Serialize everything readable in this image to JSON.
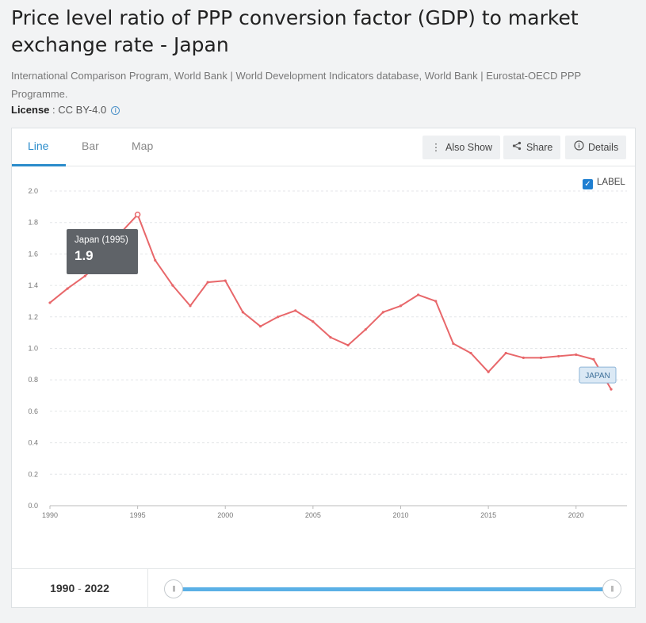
{
  "page": {
    "title": "Price level ratio of PPP conversion factor (GDP) to market exchange rate - Japan",
    "source": "International Comparison Program, World Bank | World Development Indicators database, World Bank | Eurostat-OECD PPP Programme.",
    "license_label": "License",
    "license_sep": " : ",
    "license_value": "CC BY-4.0",
    "info_icon": "i"
  },
  "tabs": [
    {
      "label": "Line",
      "active": true
    },
    {
      "label": "Bar",
      "active": false
    },
    {
      "label": "Map",
      "active": false
    }
  ],
  "toolbar": {
    "also_show": "Also Show",
    "share": "Share",
    "details": "Details"
  },
  "label_toggle": {
    "text": "LABEL",
    "checked": true
  },
  "tooltip": {
    "title": "Japan (1995)",
    "value": "1.9"
  },
  "series_label": "JAPAN",
  "range": {
    "start": "1990",
    "sep": "-",
    "end": "2022"
  },
  "colors": {
    "line": "#e8676a",
    "accent": "#2b8ccb",
    "slider": "#5ab0e6"
  },
  "chart_data": {
    "type": "line",
    "x": [
      1990,
      1991,
      1992,
      1993,
      1994,
      1995,
      1996,
      1997,
      1998,
      1999,
      2000,
      2001,
      2002,
      2003,
      2004,
      2005,
      2006,
      2007,
      2008,
      2009,
      2010,
      2011,
      2012,
      2013,
      2014,
      2015,
      2016,
      2017,
      2018,
      2019,
      2020,
      2021,
      2022
    ],
    "series": [
      {
        "name": "JAPAN",
        "values": [
          1.29,
          1.38,
          1.46,
          1.56,
          1.73,
          1.85,
          1.56,
          1.4,
          1.27,
          1.42,
          1.43,
          1.23,
          1.14,
          1.2,
          1.24,
          1.17,
          1.07,
          1.02,
          1.12,
          1.23,
          1.27,
          1.34,
          1.3,
          1.03,
          0.97,
          0.85,
          0.97,
          0.94,
          0.94,
          0.95,
          0.96,
          0.93,
          0.74
        ]
      }
    ],
    "y_ticks": [
      "0.0",
      "0.2",
      "0.4",
      "0.6",
      "0.8",
      "1.0",
      "1.2",
      "1.4",
      "1.6",
      "1.8",
      "2.0"
    ],
    "x_ticks": [
      "1990",
      "1995",
      "2000",
      "2005",
      "2010",
      "2015",
      "2020"
    ],
    "ylim": [
      0,
      2.0
    ],
    "xlim": [
      1990,
      2022
    ],
    "grid": true,
    "highlighted_point": 1995
  }
}
